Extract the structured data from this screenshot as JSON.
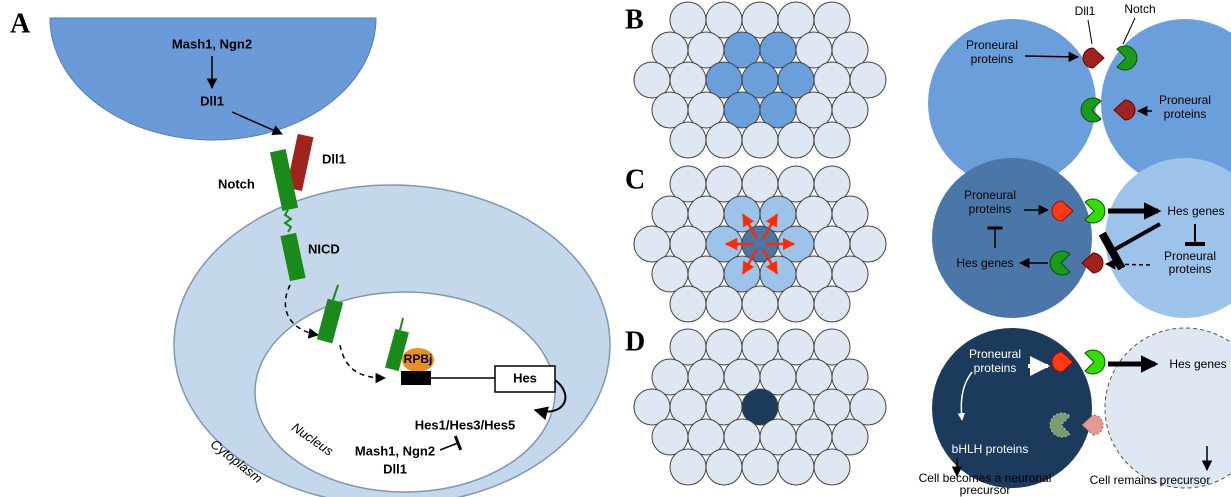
{
  "panel_a": {
    "label": "A",
    "genes": "Mash1, Ngn2",
    "ligand_gene": "Dll1",
    "dll1": "Dll1",
    "notch": "Notch",
    "nicd": "NICD",
    "rpbj": "RPBj",
    "hes": "Hes",
    "hes_family": "Hes1/Hes3/Hes5",
    "targets": [
      "Mash1, Ngn2",
      "Dll1"
    ],
    "nucleus": "Nucleus",
    "cytoplasm": "Cytoplasm"
  },
  "panel_b": {
    "label": "B",
    "dll1": "Dll1",
    "notch": "Notch",
    "left_proneural": [
      "Proneural",
      "proteins"
    ],
    "right_proneural": [
      "Proneural",
      "proteins"
    ]
  },
  "panel_c": {
    "label": "C",
    "left_proneural": [
      "Proneural",
      "proteins"
    ],
    "left_hes": "Hes genes",
    "right_hes": "Hes genes",
    "right_proneural": [
      "Proneural",
      "proteins"
    ]
  },
  "panel_d": {
    "label": "D",
    "proneural": [
      "Proneural",
      "proteins"
    ],
    "hes": "Hes genes",
    "bhlh": "bHLH proteins",
    "left_fate": [
      "Cell becomes  a neuronal",
      "precursor"
    ],
    "right_fate": "Cell remains precursor"
  }
}
